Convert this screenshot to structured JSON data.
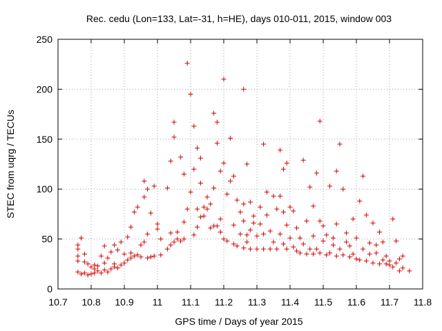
{
  "chart_data": {
    "type": "scatter",
    "title": "Rec. cedu (Lon=133, Lat=-31, h=HE), days 010-011, 2015, window 003",
    "xlabel": "GPS time / Days of year 2015",
    "ylabel": "STEC from uqrg / TECUs",
    "xlim": [
      10.7,
      11.8
    ],
    "ylim": [
      0,
      250
    ],
    "xticks": [
      "10.7",
      "10.8",
      "10.9",
      "11",
      "11.1",
      "11.2",
      "11.3",
      "11.4",
      "11.5",
      "11.6",
      "11.7",
      "11.8"
    ],
    "yticks": [
      "0",
      "50",
      "100",
      "150",
      "200",
      "250"
    ],
    "grid": true,
    "marker": "plus",
    "series": [
      {
        "color": "#cc0000",
        "points": [
          [
            10.76,
            17
          ],
          [
            10.76,
            28
          ],
          [
            10.76,
            33
          ],
          [
            10.76,
            40
          ],
          [
            10.76,
            44
          ],
          [
            10.77,
            51
          ],
          [
            10.77,
            15
          ],
          [
            10.78,
            16
          ],
          [
            10.78,
            27
          ],
          [
            10.78,
            35
          ],
          [
            10.79,
            14
          ],
          [
            10.79,
            25
          ],
          [
            10.8,
            15
          ],
          [
            10.8,
            22
          ],
          [
            10.81,
            16
          ],
          [
            10.81,
            20
          ],
          [
            10.81,
            24
          ],
          [
            10.82,
            18
          ],
          [
            10.82,
            23
          ],
          [
            10.83,
            16
          ],
          [
            10.83,
            33
          ],
          [
            10.84,
            19
          ],
          [
            10.84,
            26
          ],
          [
            10.84,
            43
          ],
          [
            10.85,
            17
          ],
          [
            10.85,
            31
          ],
          [
            10.86,
            20
          ],
          [
            10.86,
            37
          ],
          [
            10.87,
            22
          ],
          [
            10.87,
            25
          ],
          [
            10.87,
            44
          ],
          [
            10.88,
            21
          ],
          [
            10.88,
            39
          ],
          [
            10.89,
            24
          ],
          [
            10.89,
            47
          ],
          [
            10.9,
            26
          ],
          [
            10.9,
            35
          ],
          [
            10.91,
            29
          ],
          [
            10.91,
            52
          ],
          [
            10.92,
            31
          ],
          [
            10.92,
            36
          ],
          [
            10.92,
            62
          ],
          [
            10.93,
            33
          ],
          [
            10.93,
            77
          ],
          [
            10.94,
            34
          ],
          [
            10.94,
            82
          ],
          [
            10.95,
            32
          ],
          [
            10.95,
            44
          ],
          [
            10.96,
            47
          ],
          [
            10.96,
            92
          ],
          [
            10.96,
            108
          ],
          [
            10.97,
            55
          ],
          [
            10.97,
            31
          ],
          [
            10.97,
            100
          ],
          [
            10.98,
            32
          ],
          [
            10.98,
            76
          ],
          [
            10.99,
            33
          ],
          [
            10.99,
            103
          ],
          [
            11.0,
            60
          ],
          [
            11.0,
            65
          ],
          [
            11.01,
            34
          ],
          [
            11.01,
            50
          ],
          [
            11.03,
            40
          ],
          [
            11.03,
            101
          ],
          [
            11.04,
            44
          ],
          [
            11.04,
            56
          ],
          [
            11.04,
            128
          ],
          [
            11.05,
            47
          ],
          [
            11.05,
            167
          ],
          [
            11.05,
            152
          ],
          [
            11.06,
            57
          ],
          [
            11.06,
            50
          ],
          [
            11.07,
            48
          ],
          [
            11.07,
            132
          ],
          [
            11.08,
            50
          ],
          [
            11.08,
            67
          ],
          [
            11.08,
            115
          ],
          [
            11.09,
            80
          ],
          [
            11.09,
            226
          ],
          [
            11.1,
            97
          ],
          [
            11.1,
            195
          ],
          [
            11.11,
            54
          ],
          [
            11.11,
            120
          ],
          [
            11.11,
            163
          ],
          [
            11.12,
            62
          ],
          [
            11.12,
            80
          ],
          [
            11.12,
            141
          ],
          [
            11.13,
            72
          ],
          [
            11.13,
            131
          ],
          [
            11.13,
            106
          ],
          [
            11.14,
            73
          ],
          [
            11.14,
            82
          ],
          [
            11.15,
            80
          ],
          [
            11.15,
            92
          ],
          [
            11.16,
            61
          ],
          [
            11.16,
            85
          ],
          [
            11.17,
            63
          ],
          [
            11.17,
            101
          ],
          [
            11.17,
            176
          ],
          [
            11.18,
            146
          ],
          [
            11.18,
            167
          ],
          [
            11.18,
            63
          ],
          [
            11.19,
            57
          ],
          [
            11.19,
            70
          ],
          [
            11.19,
            118
          ],
          [
            11.2,
            50
          ],
          [
            11.2,
            126
          ],
          [
            11.2,
            210
          ],
          [
            11.21,
            48
          ],
          [
            11.21,
            95
          ],
          [
            11.22,
            151
          ],
          [
            11.22,
            108
          ],
          [
            11.23,
            45
          ],
          [
            11.23,
            64
          ],
          [
            11.23,
            113
          ],
          [
            11.24,
            43
          ],
          [
            11.24,
            89
          ],
          [
            11.25,
            55
          ],
          [
            11.25,
            77
          ],
          [
            11.26,
            41
          ],
          [
            11.26,
            68
          ],
          [
            11.26,
            85
          ],
          [
            11.26,
            200
          ],
          [
            11.27,
            47
          ],
          [
            11.27,
            54
          ],
          [
            11.27,
            125
          ],
          [
            11.28,
            40
          ],
          [
            11.28,
            59
          ],
          [
            11.28,
            87
          ],
          [
            11.29,
            73
          ],
          [
            11.29,
            66
          ],
          [
            11.3,
            40
          ],
          [
            11.3,
            53
          ],
          [
            11.31,
            65
          ],
          [
            11.31,
            82
          ],
          [
            11.32,
            145
          ],
          [
            11.32,
            40
          ],
          [
            11.32,
            55
          ],
          [
            11.33,
            74
          ],
          [
            11.33,
            97
          ],
          [
            11.34,
            40
          ],
          [
            11.34,
            58
          ],
          [
            11.35,
            47
          ],
          [
            11.35,
            93
          ],
          [
            11.36,
            40
          ],
          [
            11.36,
            80
          ],
          [
            11.37,
            55
          ],
          [
            11.37,
            139
          ],
          [
            11.37,
            93
          ],
          [
            11.38,
            45
          ],
          [
            11.38,
            120
          ],
          [
            11.38,
            77
          ],
          [
            11.39,
            40
          ],
          [
            11.39,
            64
          ],
          [
            11.39,
            126
          ],
          [
            11.4,
            51
          ],
          [
            11.4,
            82
          ],
          [
            11.41,
            42
          ],
          [
            11.41,
            78
          ],
          [
            11.42,
            38
          ],
          [
            11.42,
            61
          ],
          [
            11.43,
            51
          ],
          [
            11.43,
            36
          ],
          [
            11.44,
            45
          ],
          [
            11.44,
            129
          ],
          [
            11.45,
            35
          ],
          [
            11.45,
            68
          ],
          [
            11.46,
            40
          ],
          [
            11.46,
            102
          ],
          [
            11.47,
            35
          ],
          [
            11.47,
            53
          ],
          [
            11.47,
            83
          ],
          [
            11.48,
            116
          ],
          [
            11.48,
            40
          ],
          [
            11.49,
            168
          ],
          [
            11.49,
            36
          ],
          [
            11.49,
            68
          ],
          [
            11.5,
            63
          ],
          [
            11.5,
            48
          ],
          [
            11.51,
            34
          ],
          [
            11.51,
            54
          ],
          [
            11.52,
            103
          ],
          [
            11.52,
            36
          ],
          [
            11.53,
            44
          ],
          [
            11.53,
            51
          ],
          [
            11.54,
            33
          ],
          [
            11.54,
            118
          ],
          [
            11.54,
            65
          ],
          [
            11.55,
            145
          ],
          [
            11.55,
            40
          ],
          [
            11.56,
            34
          ],
          [
            11.56,
            100
          ],
          [
            11.57,
            56
          ],
          [
            11.57,
            47
          ],
          [
            11.58,
            32
          ],
          [
            11.58,
            43
          ],
          [
            11.59,
            35
          ],
          [
            11.59,
            70
          ],
          [
            11.6,
            30
          ],
          [
            11.6,
            51
          ],
          [
            11.61,
            88
          ],
          [
            11.61,
            29
          ],
          [
            11.62,
            113
          ],
          [
            11.62,
            40
          ],
          [
            11.63,
            28
          ],
          [
            11.63,
            74
          ],
          [
            11.64,
            35
          ],
          [
            11.64,
            46
          ],
          [
            11.65,
            26
          ],
          [
            11.65,
            66
          ],
          [
            11.66,
            36
          ],
          [
            11.66,
            44
          ],
          [
            11.67,
            25
          ],
          [
            11.67,
            57
          ],
          [
            11.68,
            29
          ],
          [
            11.68,
            47
          ],
          [
            11.69,
            25
          ],
          [
            11.69,
            33
          ],
          [
            11.7,
            24
          ],
          [
            11.7,
            28
          ],
          [
            11.71,
            70
          ],
          [
            11.71,
            22
          ],
          [
            11.72,
            48
          ],
          [
            11.72,
            26
          ],
          [
            11.73,
            18
          ],
          [
            11.73,
            30
          ],
          [
            11.74,
            21
          ],
          [
            11.74,
            33
          ],
          [
            11.76,
            18
          ]
        ]
      }
    ]
  }
}
